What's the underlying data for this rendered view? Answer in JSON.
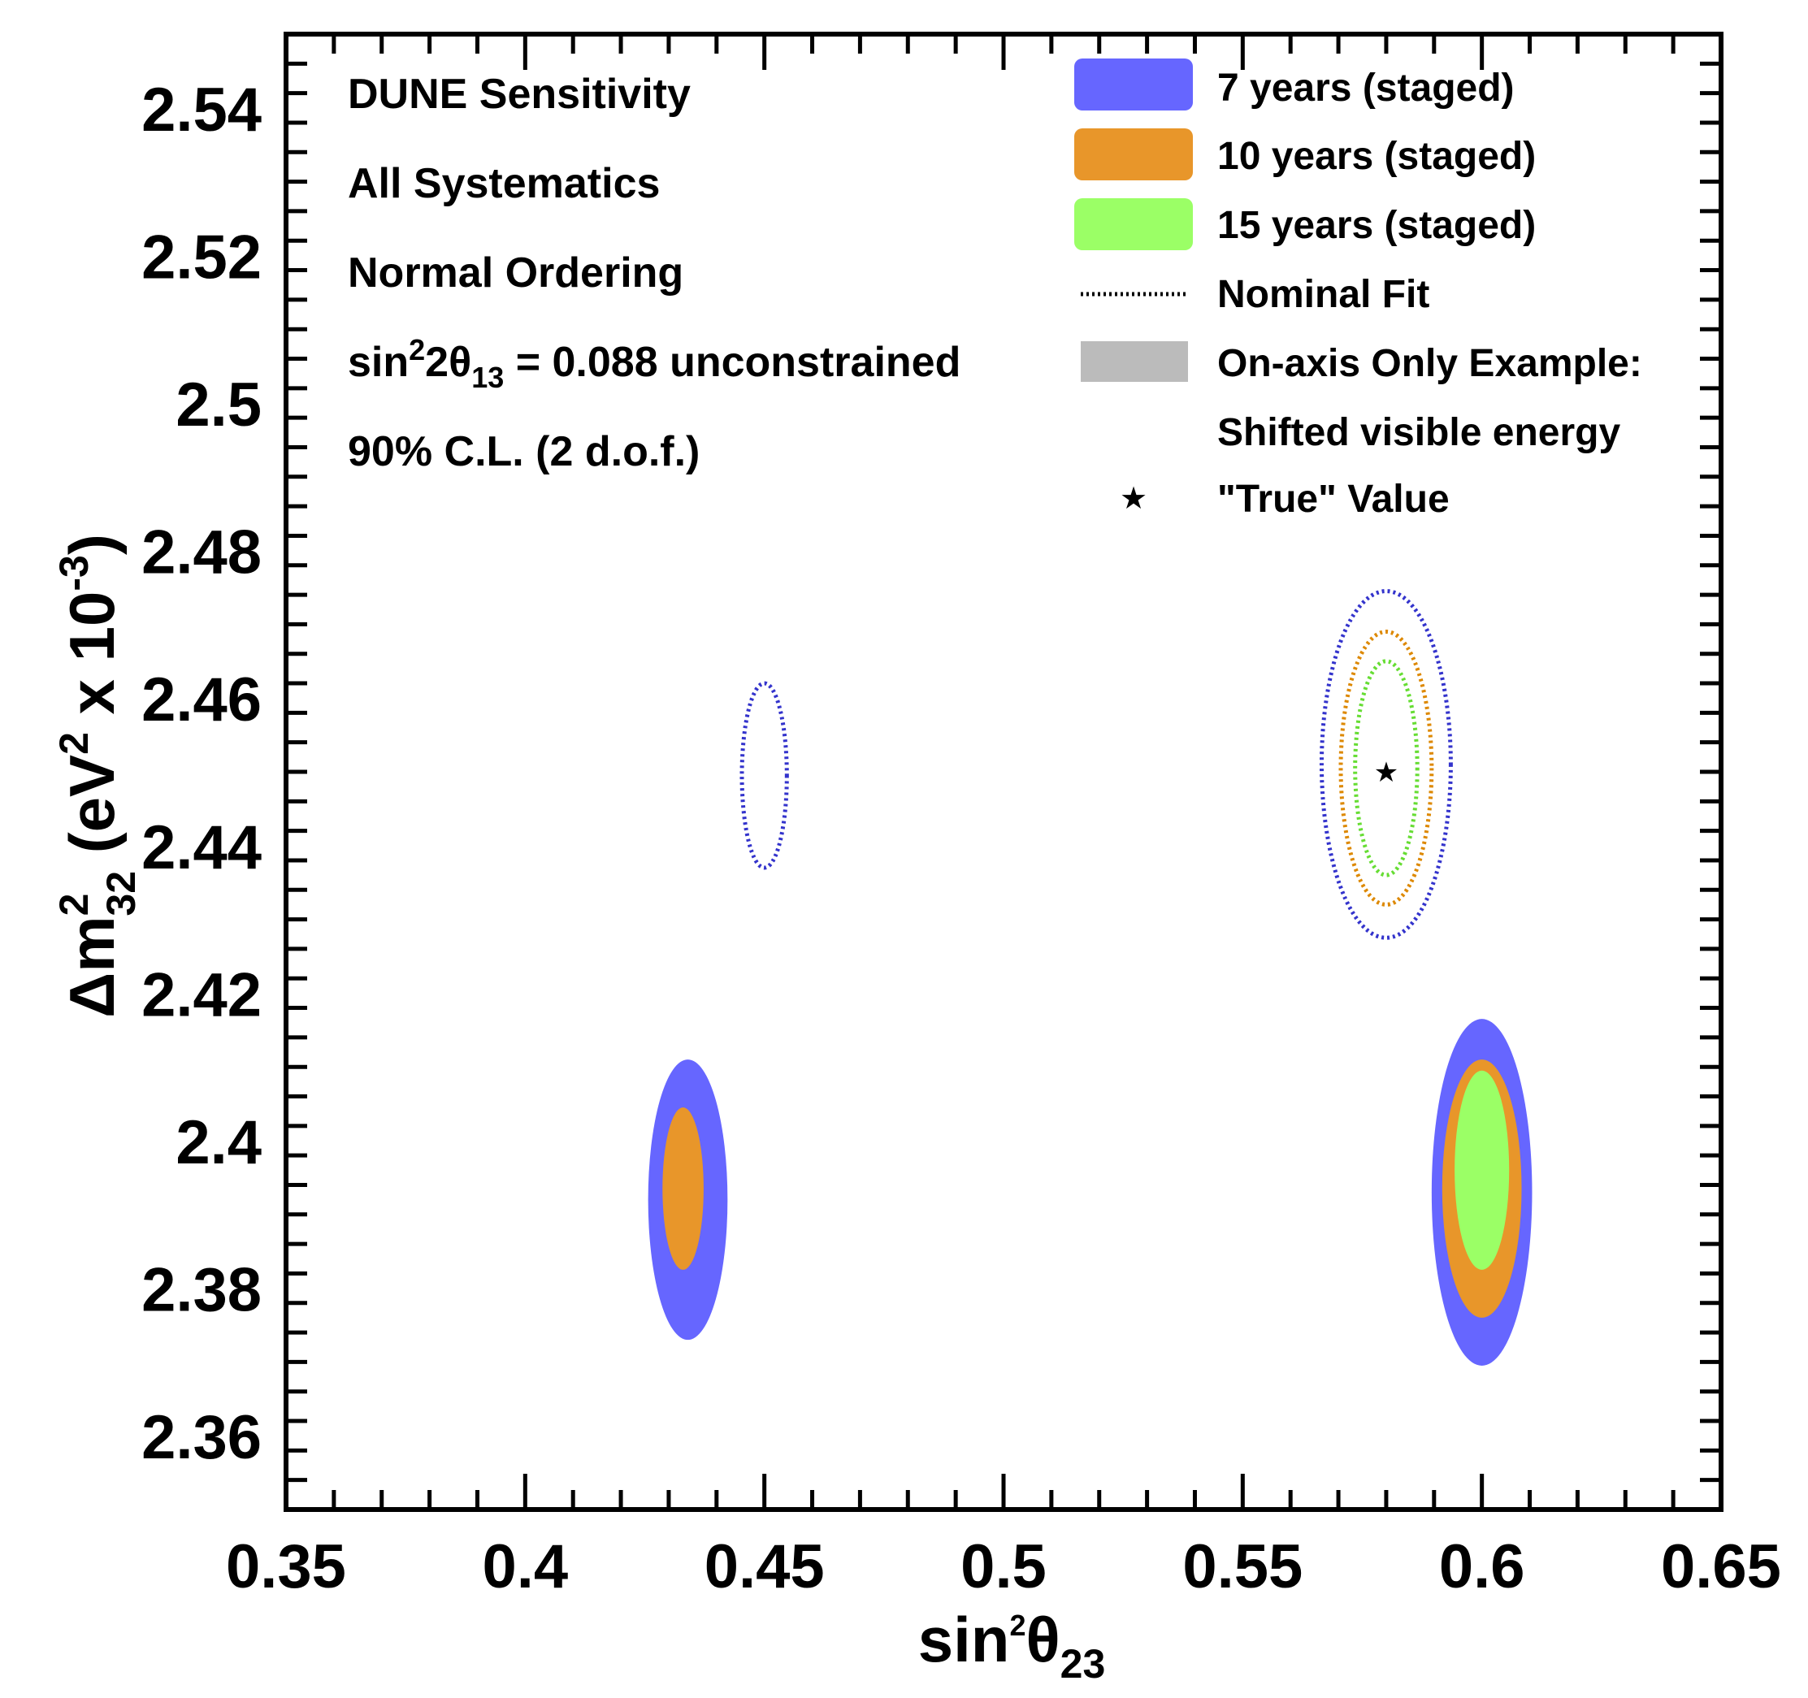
{
  "chart_data": {
    "type": "contour",
    "xlabel": {
      "prefix": "sin",
      "sup": "2",
      "greek": "θ",
      "sub": "23"
    },
    "ylabel": {
      "delta": "Δm",
      "sup": "2",
      "sub": "32",
      "unit_pre": " (eV",
      "unit_sup": "2",
      "unit_mid": " x 10",
      "unit_exp": "-3",
      "unit_post": ")"
    },
    "xlim": [
      0.35,
      0.65
    ],
    "ylim": [
      2.35,
      2.55
    ],
    "x_ticks": [
      0.35,
      0.4,
      0.45,
      0.5,
      0.55,
      0.6,
      0.65
    ],
    "x_tick_labels": [
      "0.35",
      "0.4",
      "0.45",
      "0.5",
      "0.55",
      "0.6",
      "0.65"
    ],
    "y_ticks": [
      2.36,
      2.38,
      2.4,
      2.42,
      2.44,
      2.46,
      2.48,
      2.5,
      2.52,
      2.54
    ],
    "y_tick_labels": [
      "2.36",
      "2.38",
      "2.4",
      "2.42",
      "2.44",
      "2.46",
      "2.48",
      "2.5",
      "2.52",
      "2.54"
    ],
    "annotations": [
      {
        "text": "DUNE Sensitivity"
      },
      {
        "text": "All Systematics"
      },
      {
        "text": "Normal Ordering"
      },
      {
        "pre": "sin",
        "sup": "2",
        "mid": "2θ",
        "sub": "13",
        "post": " = 0.088 unconstrained"
      },
      {
        "text": "90% C.L. (2 d.o.f.)"
      }
    ],
    "legend": {
      "position": "top-right",
      "entries": [
        {
          "label": "7 years (staged)",
          "kind": "fill",
          "color": "#6666ff"
        },
        {
          "label": "10 years (staged)",
          "kind": "fill",
          "color": "#e8962a"
        },
        {
          "label": "15 years (staged)",
          "kind": "fill",
          "color": "#9bff66"
        },
        {
          "label": "Nominal Fit",
          "kind": "dotted",
          "color": "#000000"
        },
        {
          "label": "On-axis Only Example:",
          "kind": "fill",
          "color": "#bbbbbb"
        },
        {
          "label": "Shifted visible energy",
          "kind": "none",
          "color": ""
        },
        {
          "label": "\"True\" Value",
          "kind": "star",
          "color": "#000000"
        }
      ]
    },
    "true_value": {
      "x": 0.58,
      "y": 2.45
    },
    "nominal_fit_contours": [
      {
        "series": "7 years (staged)",
        "color": "#3333cc",
        "cx": 0.58,
        "cy": 2.451,
        "rx": 0.0135,
        "ry": 0.0235
      },
      {
        "series": "10 years (staged)",
        "color": "#dd8800",
        "cx": 0.58,
        "cy": 2.4505,
        "rx": 0.0095,
        "ry": 0.0185
      },
      {
        "series": "15 years (staged)",
        "color": "#66dd33",
        "cx": 0.58,
        "cy": 2.4505,
        "rx": 0.0065,
        "ry": 0.0145
      },
      {
        "series": "7 years (staged)",
        "color": "#3333cc",
        "cx": 0.45,
        "cy": 2.4495,
        "rx": 0.0047,
        "ry": 0.0125
      }
    ],
    "shifted_regions": [
      {
        "series": "7 years (staged)",
        "color": "#6666ff",
        "cx": 0.434,
        "cy": 2.392,
        "rx": 0.0083,
        "ry": 0.019
      },
      {
        "series": "10 years (staged)",
        "color": "#e8962a",
        "cx": 0.433,
        "cy": 2.3935,
        "rx": 0.0043,
        "ry": 0.011
      },
      {
        "series": "7 years (staged)",
        "color": "#6666ff",
        "cx": 0.6,
        "cy": 2.393,
        "rx": 0.0105,
        "ry": 0.0235
      },
      {
        "series": "10 years (staged)",
        "color": "#e8962a",
        "cx": 0.6,
        "cy": 2.3935,
        "rx": 0.0083,
        "ry": 0.0175
      },
      {
        "series": "15 years (staged)",
        "color": "#9bff66",
        "cx": 0.6,
        "cy": 2.396,
        "rx": 0.0057,
        "ry": 0.0135
      }
    ]
  }
}
